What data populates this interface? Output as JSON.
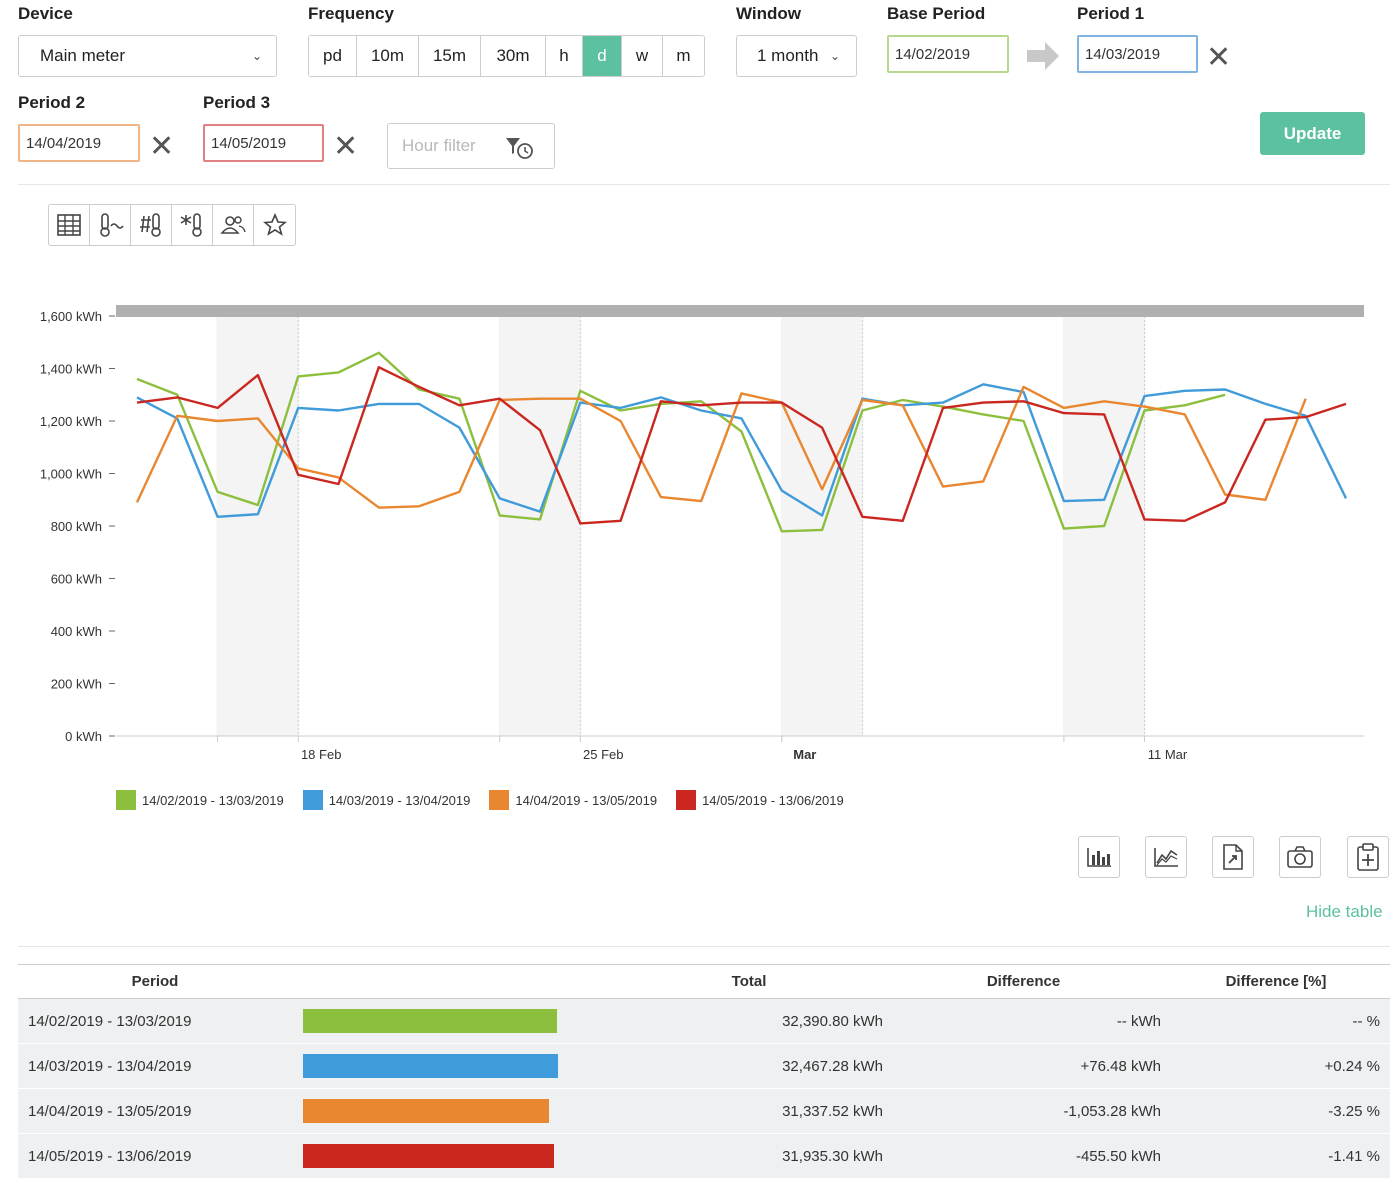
{
  "controls": {
    "device": {
      "label": "Device",
      "value": "Main meter"
    },
    "frequency": {
      "label": "Frequency",
      "options": [
        "pd",
        "10m",
        "15m",
        "30m",
        "h",
        "d",
        "w",
        "m"
      ],
      "active": "d"
    },
    "window": {
      "label": "Window",
      "value": "1 month"
    },
    "base_period": {
      "label": "Base Period",
      "value": "14/02/2019"
    },
    "period1": {
      "label": "Period 1",
      "value": "14/03/2019"
    },
    "period2": {
      "label": "Period 2",
      "value": "14/04/2019"
    },
    "period3": {
      "label": "Period 3",
      "value": "14/05/2019"
    },
    "hour_filter": {
      "placeholder": "Hour filter"
    },
    "update_label": "Update"
  },
  "toolbar_icons": [
    "table-icon",
    "temperature-trend-icon",
    "degree-days-icon",
    "frost-temperature-icon",
    "occupancy-icon",
    "favorite-star-icon"
  ],
  "chart_data": {
    "type": "line",
    "ylim": [
      0,
      1600
    ],
    "y_ticks": [
      "0 kWh",
      "200 kWh",
      "400 kWh",
      "600 kWh",
      "800 kWh",
      "1,000 kWh",
      "1,200 kWh",
      "1,400 kWh",
      "1,600 kWh"
    ],
    "y_tick_values": [
      0,
      200,
      400,
      600,
      800,
      1000,
      1200,
      1400,
      1600
    ],
    "x_ticks": [
      {
        "label": "18 Feb",
        "day": 4,
        "bold": false
      },
      {
        "label": "25 Feb",
        "day": 11,
        "bold": false
      },
      {
        "label": "Mar",
        "day": 16,
        "bold": true
      },
      {
        "label": "11 Mar",
        "day": 25,
        "bold": false
      }
    ],
    "weekend_days": [
      [
        2,
        4
      ],
      [
        9,
        11
      ],
      [
        16,
        18
      ],
      [
        23,
        25
      ]
    ],
    "series": [
      {
        "name": "14/02/2019 - 13/03/2019",
        "color": "#8dbf3f",
        "values": [
          1360,
          1300,
          930,
          880,
          1370,
          1385,
          1460,
          1320,
          1285,
          840,
          825,
          1315,
          1240,
          1265,
          1275,
          1160,
          780,
          785,
          1240,
          1280,
          1255,
          1225,
          1200,
          790,
          800,
          1240,
          1260,
          1300
        ]
      },
      {
        "name": "14/03/2019 - 13/04/2019",
        "color": "#3f9bd9",
        "values": [
          1290,
          1210,
          835,
          845,
          1250,
          1240,
          1265,
          1265,
          1175,
          905,
          855,
          1270,
          1250,
          1290,
          1240,
          1210,
          935,
          840,
          1285,
          1260,
          1270,
          1340,
          1310,
          895,
          900,
          1295,
          1315,
          1320,
          1265,
          1220,
          905
        ]
      },
      {
        "name": "14/04/2019 - 13/05/2019",
        "color": "#e8872f",
        "values": [
          890,
          1220,
          1200,
          1210,
          1020,
          985,
          870,
          875,
          930,
          1280,
          1285,
          1285,
          1200,
          910,
          895,
          1305,
          1270,
          940,
          1280,
          1260,
          950,
          970,
          1330,
          1250,
          1275,
          1255,
          1225,
          920,
          900,
          1285
        ]
      },
      {
        "name": "14/05/2019 - 13/06/2019",
        "color": "#c9271f",
        "values": [
          1270,
          1290,
          1250,
          1375,
          995,
          960,
          1405,
          1330,
          1260,
          1285,
          1165,
          810,
          820,
          1275,
          1260,
          1270,
          1270,
          1175,
          835,
          820,
          1250,
          1270,
          1275,
          1230,
          1225,
          825,
          820,
          890,
          1205,
          1215,
          1265
        ]
      }
    ]
  },
  "icon_buttons": [
    "bar-chart-icon",
    "line-chart-icon",
    "export-file-icon",
    "camera-icon",
    "clipboard-add-icon"
  ],
  "hide_table_label": "Hide table",
  "table": {
    "headers": {
      "period": "Period",
      "total": "Total",
      "difference": "Difference",
      "difference_pct": "Difference [%]"
    },
    "rows": [
      {
        "period": "14/02/2019 - 13/03/2019",
        "color": "#8dbf3f",
        "total_value": 32390.8,
        "total": "32,390.80 kWh",
        "difference": "-- kWh",
        "difference_pct": "-- %"
      },
      {
        "period": "14/03/2019 - 13/04/2019",
        "color": "#3f9bd9",
        "total_value": 32467.28,
        "total": "32,467.28 kWh",
        "difference": "+76.48 kWh",
        "difference_pct": "+0.24 %"
      },
      {
        "period": "14/04/2019 - 13/05/2019",
        "color": "#e8872f",
        "total_value": 31337.52,
        "total": "31,337.52 kWh",
        "difference": "-1,053.28 kWh",
        "difference_pct": "-3.25 %"
      },
      {
        "period": "14/05/2019 - 13/06/2019",
        "color": "#c9271f",
        "total_value": 31935.3,
        "total": "31,935.30 kWh",
        "difference": "-455.50 kWh",
        "difference_pct": "-1.41 %"
      }
    ]
  }
}
